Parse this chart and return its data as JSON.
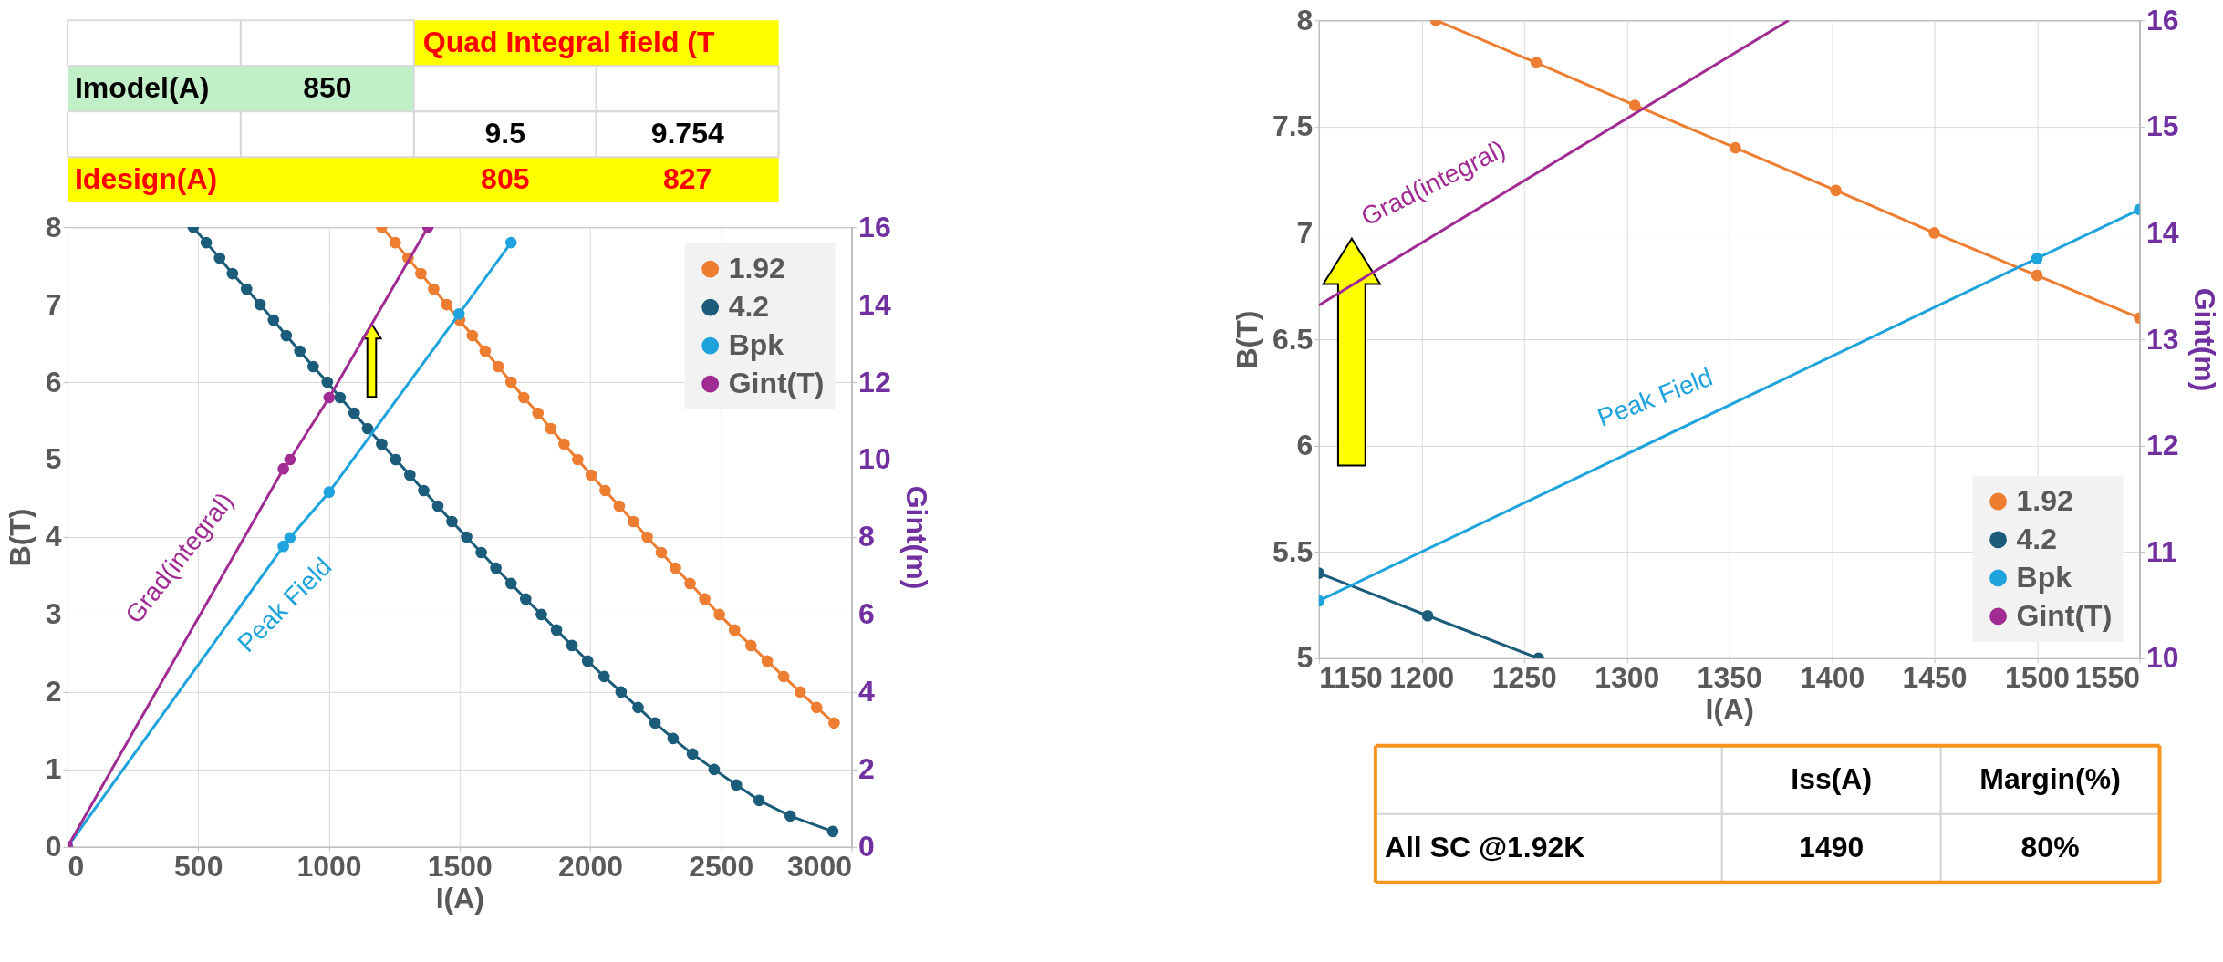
{
  "chart_data": [
    {
      "type": "other",
      "annotations": [
        "Quad Integral field (T",
        "Imodel(A)",
        "850",
        "9.5",
        "9.754",
        "Idesign(A)",
        "805",
        "827"
      ]
    },
    {
      "type": "line",
      "xlabel": "I(A)",
      "ylabel": "B(T)",
      "y2label": "Gint(m)",
      "xlim": [
        0,
        3000
      ],
      "xticks": [
        0,
        500,
        1000,
        1500,
        2000,
        2500,
        3000
      ],
      "ylim": [
        0,
        8
      ],
      "yticks": [
        0,
        1,
        2,
        3,
        4,
        5,
        6,
        7,
        8
      ],
      "y2lim": [
        0,
        16
      ],
      "y2ticks": [
        0,
        2,
        4,
        6,
        8,
        10,
        12,
        14,
        16
      ],
      "grid": true,
      "legend": "top right",
      "marker": "circle",
      "line_style": "solid",
      "series": [
        {
          "name": "1.92",
          "color": "#ed7d31",
          "x": [
            1202,
            1254,
            1303,
            1352,
            1401,
            1451,
            1500,
            1549,
            1598,
            1648,
            1697,
            1746,
            1800,
            1849,
            1900,
            1952,
            2004,
            2057,
            2111,
            2165,
            2218,
            2272,
            2326,
            2382,
            2438,
            2494,
            2552,
            2615,
            2677,
            2740,
            2803,
            2866,
            2933
          ],
          "values": [
            8,
            7.8,
            7.6,
            7.4,
            7.2,
            7.0,
            6.8,
            6.6,
            6.4,
            6.2,
            6.0,
            5.8,
            5.6,
            5.4,
            5.2,
            5.0,
            4.8,
            4.6,
            4.4,
            4.2,
            4.0,
            3.8,
            3.6,
            3.4,
            3.2,
            3.0,
            2.8,
            2.6,
            2.4,
            2.2,
            2.0,
            1.8,
            1.6
          ]
        },
        {
          "name": "4.2",
          "color": "#1b5c7a",
          "x": [
            481,
            531,
            582,
            631,
            685,
            737,
            788,
            837,
            889,
            940,
            994,
            1043,
            1097,
            1148,
            1202,
            1256,
            1310,
            1363,
            1417,
            1471,
            1527,
            1583,
            1639,
            1697,
            1753,
            1813,
            1871,
            1930,
            1990,
            2053,
            2118,
            2183,
            2248,
            2317,
            2391,
            2474,
            2559,
            2646,
            2765,
            2928
          ],
          "values": [
            8,
            7.8,
            7.6,
            7.4,
            7.2,
            7.0,
            6.8,
            6.6,
            6.4,
            6.2,
            6.0,
            5.8,
            5.6,
            5.4,
            5.2,
            5.0,
            4.8,
            4.6,
            4.4,
            4.2,
            4.0,
            3.8,
            3.6,
            3.4,
            3.2,
            3.0,
            2.8,
            2.6,
            2.4,
            2.2,
            2.0,
            1.8,
            1.6,
            1.4,
            1.2,
            1.0,
            0.8,
            0.6,
            0.4,
            0.2
          ]
        },
        {
          "name": "Bpk",
          "color": "#1ea3dc",
          "x": [
            0,
            826,
            851,
            1001,
            1498,
            1697
          ],
          "values": [
            0,
            3.88,
            3.99,
            4.58,
            6.88,
            7.8
          ]
        },
        {
          "name": "Gint(T)",
          "color": "#a02b93",
          "axis": "y2",
          "x": [
            0,
            826,
            851,
            1001,
            1379
          ],
          "values": [
            0,
            9.76,
            10.0,
            11.6,
            16
          ]
        }
      ],
      "annotations": [
        "Grad(integral)",
        "Peak Field"
      ]
    },
    {
      "type": "line",
      "xlabel": "I(A)",
      "ylabel": "B(T)",
      "y2label": "Gint(m)",
      "xlim": [
        1150,
        1550
      ],
      "xticks": [
        1150,
        1200,
        1250,
        1300,
        1350,
        1400,
        1450,
        1500,
        1550
      ],
      "ylim": [
        5,
        8
      ],
      "yticks": [
        5,
        5.5,
        6,
        6.5,
        7,
        7.5,
        8
      ],
      "y2lim": [
        10,
        16
      ],
      "y2ticks": [
        10,
        11,
        12,
        13,
        14,
        15,
        16
      ],
      "grid": true,
      "legend": "bottom right",
      "marker": "circle",
      "line_style": "solid",
      "series": [
        {
          "name": "1.92",
          "color": "#ed7d31",
          "x": [
            1207,
            1256,
            1304,
            1353,
            1402,
            1450,
            1500,
            1550
          ],
          "values": [
            8,
            7.8,
            7.6,
            7.4,
            7.2,
            7.0,
            6.8,
            6.6
          ]
        },
        {
          "name": "4.2",
          "color": "#1b5c7a",
          "x": [
            1150,
            1203,
            1257
          ],
          "values": [
            5.4,
            5.2,
            5.0
          ]
        },
        {
          "name": "Bpk",
          "color": "#1ea3dc",
          "x": [
            1150,
            1500,
            1550
          ],
          "values": [
            5.27,
            6.88,
            7.11
          ]
        },
        {
          "name": "Gint(T)",
          "color": "#a02b93",
          "axis": "y2",
          "marker": "none",
          "x": [
            1150,
            1379
          ],
          "values": [
            13.32,
            16
          ]
        }
      ],
      "annotations": [
        "Grad(integral)",
        "Peak Field"
      ]
    },
    {
      "type": "other",
      "annotations": [
        "Iss(A)",
        "Margin(%)",
        "All SC @1.92K",
        "1490",
        "80%"
      ]
    }
  ]
}
